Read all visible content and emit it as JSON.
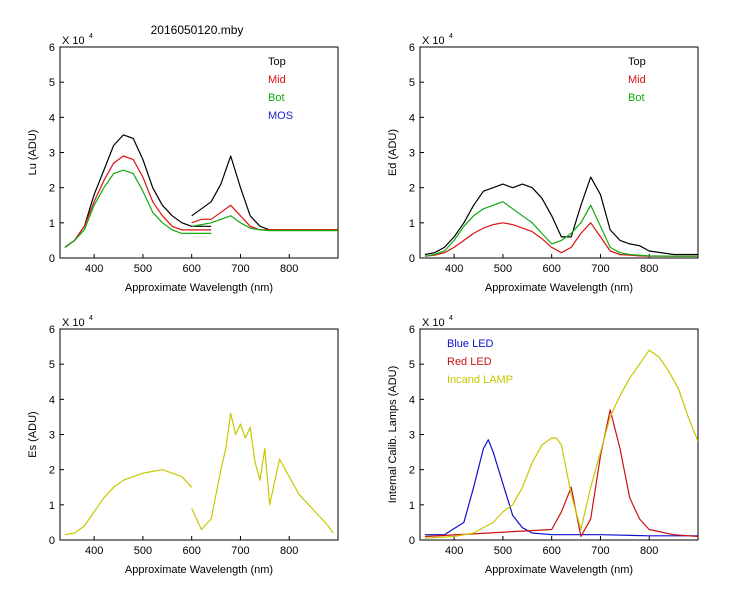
{
  "figure_title": "2016050120.mby",
  "colors": {
    "top": "#000000",
    "mid": "#dd1111",
    "bot": "#11aa11",
    "mos": "#2222cc",
    "es": "#c8c800",
    "blue_led": "#1111cc",
    "red_led": "#cc1111",
    "incand": "#c8c800",
    "axis": "#000000"
  },
  "chart_data": [
    {
      "id": "lu",
      "type": "line",
      "ylabel": "Lu (ADU)",
      "xlabel": "Approximate Wavelength (nm)",
      "xlim": [
        330,
        900
      ],
      "ylim": [
        0,
        6
      ],
      "xticks": [
        400,
        500,
        600,
        700,
        800
      ],
      "yticks": [
        0,
        1,
        2,
        3,
        4,
        5,
        6
      ],
      "multiplier": "X 10",
      "exponent": "4",
      "legend": [
        {
          "label": "Top",
          "color": "#000000"
        },
        {
          "label": "Mid",
          "color": "#dd1111"
        },
        {
          "label": "Bot",
          "color": "#11aa11"
        },
        {
          "label": "MOS",
          "color": "#2222cc"
        }
      ],
      "series": [
        {
          "name": "Top",
          "color": "#000000",
          "x": [
            340,
            360,
            380,
            400,
            420,
            440,
            460,
            480,
            500,
            520,
            540,
            560,
            580,
            600,
            620,
            640
          ],
          "y": [
            0.3,
            0.5,
            0.9,
            1.8,
            2.5,
            3.2,
            3.5,
            3.4,
            2.8,
            2.0,
            1.5,
            1.2,
            1.0,
            0.9,
            0.9,
            0.9
          ]
        },
        {
          "name": "Mid",
          "color": "#dd1111",
          "x": [
            340,
            360,
            380,
            400,
            420,
            440,
            460,
            480,
            500,
            520,
            540,
            560,
            580,
            600,
            620,
            640
          ],
          "y": [
            0.3,
            0.5,
            0.9,
            1.6,
            2.2,
            2.7,
            2.9,
            2.8,
            2.3,
            1.6,
            1.2,
            0.9,
            0.8,
            0.8,
            0.8,
            0.8
          ]
        },
        {
          "name": "Bot",
          "color": "#11aa11",
          "x": [
            340,
            360,
            380,
            400,
            420,
            440,
            460,
            480,
            500,
            520,
            540,
            560,
            580,
            600,
            620,
            640
          ],
          "y": [
            0.3,
            0.5,
            0.8,
            1.5,
            2.0,
            2.4,
            2.5,
            2.4,
            1.9,
            1.3,
            1.0,
            0.8,
            0.7,
            0.7,
            0.7,
            0.7
          ]
        },
        {
          "name": "Top",
          "color": "#000000",
          "x": [
            600,
            620,
            640,
            660,
            680,
            700,
            720,
            740,
            760,
            800,
            850,
            900
          ],
          "y": [
            1.2,
            1.4,
            1.6,
            2.1,
            2.9,
            2.0,
            1.2,
            0.9,
            0.8,
            0.8,
            0.8,
            0.8
          ]
        },
        {
          "name": "Mid",
          "color": "#dd1111",
          "x": [
            600,
            620,
            640,
            660,
            680,
            700,
            720,
            740,
            760,
            800,
            850,
            900
          ],
          "y": [
            1.0,
            1.1,
            1.1,
            1.3,
            1.5,
            1.2,
            0.9,
            0.8,
            0.8,
            0.8,
            0.8,
            0.8
          ]
        },
        {
          "name": "Bot",
          "color": "#11aa11",
          "x": [
            600,
            620,
            640,
            660,
            680,
            700,
            720,
            740,
            760,
            800,
            850,
            900
          ],
          "y": [
            0.9,
            0.95,
            1.0,
            1.1,
            1.2,
            1.0,
            0.85,
            0.8,
            0.78,
            0.78,
            0.78,
            0.78
          ]
        }
      ]
    },
    {
      "id": "ed",
      "type": "line",
      "ylabel": "Ed  (ADU)",
      "xlabel": "Approximate Wavelength (nm)",
      "xlim": [
        330,
        900
      ],
      "ylim": [
        0,
        6
      ],
      "xticks": [
        400,
        500,
        600,
        700,
        800
      ],
      "yticks": [
        0,
        1,
        2,
        3,
        4,
        5,
        6
      ],
      "multiplier": "X 10",
      "exponent": "4",
      "legend": [
        {
          "label": "Top",
          "color": "#000000"
        },
        {
          "label": "Mid",
          "color": "#dd1111"
        },
        {
          "label": "Bot",
          "color": "#11aa11"
        }
      ],
      "series": [
        {
          "name": "Top",
          "color": "#000000",
          "x": [
            340,
            360,
            380,
            400,
            420,
            440,
            460,
            480,
            500,
            520,
            540,
            560,
            580,
            600,
            620,
            640,
            660,
            680,
            700,
            720,
            740,
            760,
            780,
            800,
            850,
            900
          ],
          "y": [
            0.1,
            0.15,
            0.3,
            0.6,
            1.0,
            1.5,
            1.9,
            2.0,
            2.1,
            2.0,
            2.1,
            2.0,
            1.7,
            1.2,
            0.6,
            0.6,
            1.5,
            2.3,
            1.8,
            0.8,
            0.5,
            0.4,
            0.35,
            0.2,
            0.1,
            0.1
          ]
        },
        {
          "name": "Mid",
          "color": "#dd1111",
          "x": [
            340,
            360,
            380,
            400,
            420,
            440,
            460,
            480,
            500,
            520,
            540,
            560,
            580,
            600,
            620,
            640,
            660,
            680,
            700,
            720,
            740,
            760,
            780,
            800,
            850,
            900
          ],
          "y": [
            0.05,
            0.08,
            0.15,
            0.3,
            0.5,
            0.7,
            0.85,
            0.95,
            1.0,
            0.95,
            0.85,
            0.75,
            0.55,
            0.3,
            0.15,
            0.3,
            0.7,
            1.0,
            0.6,
            0.2,
            0.1,
            0.08,
            0.06,
            0.05,
            0.05,
            0.05
          ]
        },
        {
          "name": "Bot",
          "color": "#11aa11",
          "x": [
            340,
            360,
            380,
            400,
            420,
            440,
            460,
            480,
            500,
            520,
            540,
            560,
            580,
            600,
            620,
            640,
            660,
            680,
            700,
            720,
            740,
            760,
            780,
            800,
            850,
            900
          ],
          "y": [
            0.05,
            0.1,
            0.2,
            0.5,
            0.9,
            1.2,
            1.4,
            1.5,
            1.6,
            1.4,
            1.2,
            1.0,
            0.7,
            0.4,
            0.5,
            0.7,
            1.0,
            1.5,
            0.9,
            0.3,
            0.15,
            0.1,
            0.08,
            0.06,
            0.05,
            0.05
          ]
        }
      ]
    },
    {
      "id": "es",
      "type": "line",
      "ylabel": "Es  (ADU)",
      "xlabel": "Approximate Wavelength (nm)",
      "xlim": [
        330,
        900
      ],
      "ylim": [
        0,
        6
      ],
      "xticks": [
        400,
        500,
        600,
        700,
        800
      ],
      "yticks": [
        0,
        1,
        2,
        3,
        4,
        5,
        6
      ],
      "multiplier": "X 10",
      "exponent": "4",
      "legend": [],
      "series": [
        {
          "name": "Es",
          "color": "#c8c800",
          "x": [
            340,
            360,
            380,
            400,
            420,
            440,
            460,
            480,
            500,
            520,
            540,
            560,
            580,
            600
          ],
          "y": [
            0.15,
            0.2,
            0.4,
            0.8,
            1.2,
            1.5,
            1.7,
            1.8,
            1.9,
            1.95,
            2.0,
            1.9,
            1.8,
            1.5
          ]
        },
        {
          "name": "Es",
          "color": "#c8c800",
          "x": [
            600,
            620,
            640,
            660,
            670,
            680,
            690,
            700,
            710,
            720,
            730,
            740,
            750,
            760,
            780,
            800,
            820,
            840,
            860,
            880,
            890
          ],
          "y": [
            0.9,
            0.3,
            0.6,
            2.0,
            2.6,
            3.6,
            3.0,
            3.3,
            2.9,
            3.2,
            2.2,
            1.7,
            2.6,
            1.0,
            2.3,
            1.8,
            1.3,
            1.0,
            0.7,
            0.4,
            0.2
          ]
        }
      ]
    },
    {
      "id": "calib",
      "type": "line",
      "ylabel": "Internal Calib. Lamps (ADU)",
      "xlabel": "Approximate Wavelength (nm)",
      "xlim": [
        330,
        900
      ],
      "ylim": [
        0,
        6
      ],
      "xticks": [
        400,
        500,
        600,
        700,
        800
      ],
      "yticks": [
        0,
        1,
        2,
        3,
        4,
        5,
        6
      ],
      "multiplier": "X 10",
      "exponent": "4",
      "legend": [
        {
          "label": "Blue LED",
          "color": "#1111cc"
        },
        {
          "label": "Red LED",
          "color": "#cc1111"
        },
        {
          "label": "Incand LAMP",
          "color": "#c8c800"
        }
      ],
      "series": [
        {
          "name": "Blue LED",
          "color": "#1111cc",
          "x": [
            340,
            380,
            420,
            440,
            460,
            470,
            480,
            500,
            520,
            540,
            560,
            600,
            700,
            800,
            900
          ],
          "y": [
            0.15,
            0.15,
            0.5,
            1.5,
            2.6,
            2.85,
            2.5,
            1.6,
            0.7,
            0.35,
            0.2,
            0.15,
            0.15,
            0.12,
            0.12
          ]
        },
        {
          "name": "Red LED",
          "color": "#cc1111",
          "x": [
            340,
            600,
            620,
            640,
            660,
            680,
            700,
            720,
            740,
            760,
            780,
            800,
            850,
            900
          ],
          "y": [
            0.1,
            0.3,
            0.8,
            1.5,
            0.1,
            0.6,
            2.4,
            3.7,
            2.6,
            1.2,
            0.6,
            0.3,
            0.15,
            0.1
          ]
        },
        {
          "name": "Incand LAMP",
          "color": "#c8c800",
          "x": [
            340,
            400,
            440,
            480,
            500,
            520,
            540,
            560,
            580,
            600,
            610,
            620,
            640,
            660,
            680,
            700,
            720,
            740,
            760,
            780,
            800,
            820,
            840,
            860,
            880,
            900
          ],
          "y": [
            0.05,
            0.1,
            0.2,
            0.5,
            0.8,
            1.0,
            1.5,
            2.2,
            2.7,
            2.9,
            2.9,
            2.7,
            1.3,
            0.3,
            1.5,
            2.5,
            3.5,
            4.1,
            4.6,
            5.0,
            5.4,
            5.2,
            4.8,
            4.3,
            3.5,
            2.8
          ]
        }
      ]
    }
  ]
}
